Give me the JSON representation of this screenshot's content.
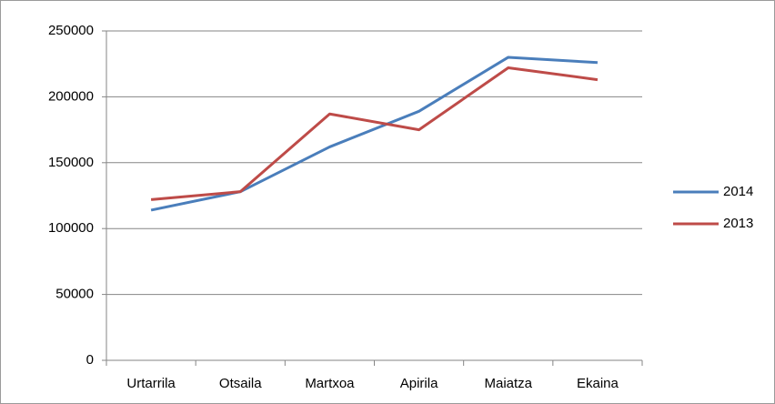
{
  "chart_data": {
    "type": "line",
    "categories": [
      "Urtarrila",
      "Otsaila",
      "Martxoa",
      "Apirila",
      "Maiatza",
      "Ekaina"
    ],
    "series": [
      {
        "name": "2014",
        "color": "#4a7ebb",
        "values": [
          114000,
          128000,
          162000,
          189000,
          230000,
          226000
        ]
      },
      {
        "name": "2013",
        "color": "#be4b48",
        "values": [
          122000,
          128000,
          187000,
          175000,
          222000,
          213000
        ]
      }
    ],
    "ylim": [
      0,
      250000
    ],
    "yticks": [
      0,
      50000,
      100000,
      150000,
      200000,
      250000
    ],
    "grid": true,
    "legend": "right"
  }
}
